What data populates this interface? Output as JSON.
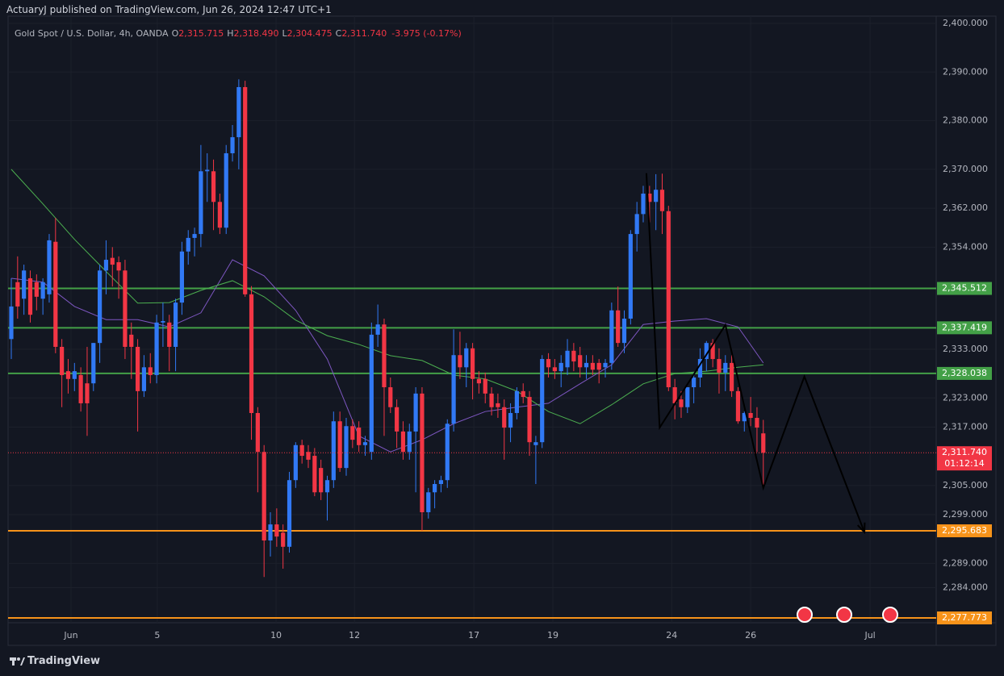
{
  "header": {
    "publisher": "ActuaryJ published on TradingView.com, Jun 26, 2024 12:47 UTC+1",
    "footer": "TradingView"
  },
  "chart_data": {
    "type": "candlestick",
    "symbol": "Gold Spot / U.S. Dollar, 4h, OANDA",
    "legend_values": [
      {
        "key": "O",
        "value": "2,315.715"
      },
      {
        "key": "H",
        "value": "2,318.490"
      },
      {
        "key": "L",
        "value": "2,304.475"
      },
      {
        "key": "C",
        "value": "2,311.740"
      }
    ],
    "change": "-3.975 (-0.17%)",
    "up_color": "#3179f5",
    "down_color": "#f23645",
    "xlim": [
      -0.51,
      146.36
    ],
    "ylim": [
      2276.78,
      2401.49
    ],
    "grid": true,
    "xticks": [
      {
        "value": 9.45,
        "label": "Jun"
      },
      {
        "value": 23.1,
        "label": "5"
      },
      {
        "value": 41.9,
        "label": "10"
      },
      {
        "value": 54.3,
        "label": "12"
      },
      {
        "value": 73.2,
        "label": "17"
      },
      {
        "value": 85.7,
        "label": "19"
      },
      {
        "value": 104.5,
        "label": "24"
      },
      {
        "value": 117.0,
        "label": "26"
      },
      {
        "value": 135.9,
        "label": "Jul"
      }
    ],
    "yticks": [
      {
        "value": 2400,
        "label": "2,400.000"
      },
      {
        "value": 2390,
        "label": "2,390.000"
      },
      {
        "value": 2380,
        "label": "2,380.000"
      },
      {
        "value": 2370,
        "label": "2,370.000"
      },
      {
        "value": 2362,
        "label": "2,362.000"
      },
      {
        "value": 2354,
        "label": "2,354.000"
      },
      {
        "value": 2333,
        "label": "2,333.000"
      },
      {
        "value": 2323,
        "label": "2,323.000"
      },
      {
        "value": 2317,
        "label": "2,317.000"
      },
      {
        "value": 2305,
        "label": "2,305.000"
      },
      {
        "value": 2299,
        "label": "2,299.000"
      },
      {
        "value": 2289,
        "label": "2,289.000"
      },
      {
        "value": 2284,
        "label": "2,284.000"
      }
    ],
    "ohlc": [
      [
        2335.1,
        2347.6,
        2331.0,
        2341.8
      ],
      [
        2346.8,
        2352.1,
        2339.3,
        2341.8
      ],
      [
        2343.4,
        2350.4,
        2340.1,
        2349.2
      ],
      [
        2347.6,
        2349.2,
        2338.5,
        2340.1
      ],
      [
        2346.8,
        2348.4,
        2341.0,
        2343.8
      ],
      [
        2343.4,
        2347.6,
        2340.1,
        2346.8
      ],
      [
        2344.3,
        2356.7,
        2342.6,
        2355.4
      ],
      [
        2355.1,
        2360.0,
        2332.2,
        2333.5
      ],
      [
        2333.5,
        2335.1,
        2321.1,
        2327.7
      ],
      [
        2328.5,
        2331.0,
        2323.9,
        2326.9
      ],
      [
        2326.9,
        2330.2,
        2324.4,
        2328.5
      ],
      [
        2327.7,
        2329.3,
        2320.2,
        2321.9
      ],
      [
        2326.0,
        2333.5,
        2315.2,
        2321.9
      ],
      [
        2326.0,
        2334.3,
        2324.4,
        2334.3
      ],
      [
        2334.3,
        2350.4,
        2330.2,
        2349.2
      ],
      [
        2349.2,
        2355.4,
        2344.3,
        2351.4
      ],
      [
        2351.8,
        2354.0,
        2345.9,
        2350.4
      ],
      [
        2350.9,
        2352.1,
        2343.4,
        2349.2
      ],
      [
        2349.2,
        2351.4,
        2331.0,
        2333.5
      ],
      [
        2336.0,
        2338.5,
        2326.9,
        2333.5
      ],
      [
        2333.5,
        2335.1,
        2316.1,
        2324.4
      ],
      [
        2324.4,
        2331.8,
        2323.2,
        2329.3
      ],
      [
        2329.3,
        2332.2,
        2326.0,
        2327.7
      ],
      [
        2327.7,
        2340.1,
        2326.0,
        2338.5
      ],
      [
        2338.5,
        2342.6,
        2333.5,
        2338.8
      ],
      [
        2338.5,
        2340.1,
        2328.5,
        2333.5
      ],
      [
        2333.5,
        2343.4,
        2328.5,
        2342.6
      ],
      [
        2342.6,
        2355.1,
        2340.1,
        2353.1
      ],
      [
        2353.1,
        2357.5,
        2350.4,
        2355.9
      ],
      [
        2355.9,
        2358.0,
        2352.1,
        2356.7
      ],
      [
        2356.7,
        2375.0,
        2354.0,
        2369.6
      ],
      [
        2369.6,
        2373.3,
        2363.3,
        2369.9
      ],
      [
        2369.6,
        2372.0,
        2357.5,
        2363.3
      ],
      [
        2363.3,
        2365.0,
        2356.7,
        2358.0
      ],
      [
        2358.0,
        2375.0,
        2356.7,
        2373.3
      ],
      [
        2373.3,
        2379.1,
        2371.6,
        2376.6
      ],
      [
        2376.6,
        2388.5,
        2370.0,
        2386.9
      ],
      [
        2386.9,
        2388.2,
        2343.8,
        2344.3
      ],
      [
        2344.3,
        2346.0,
        2314.4,
        2319.9
      ],
      [
        2319.9,
        2321.1,
        2303.6,
        2311.9
      ],
      [
        2311.9,
        2313.3,
        2286.2,
        2293.7
      ],
      [
        2293.7,
        2299.5,
        2290.4,
        2297.0
      ],
      [
        2297.0,
        2300.3,
        2292.4,
        2294.5
      ],
      [
        2295.3,
        2297.0,
        2287.9,
        2292.4
      ],
      [
        2292.4,
        2307.8,
        2291.2,
        2306.1
      ],
      [
        2306.1,
        2313.9,
        2304.5,
        2313.3
      ],
      [
        2313.3,
        2314.4,
        2309.5,
        2311.1
      ],
      [
        2311.9,
        2313.3,
        2308.6,
        2310.3
      ],
      [
        2311.1,
        2312.7,
        2302.8,
        2303.6
      ],
      [
        2308.6,
        2310.3,
        2302.0,
        2303.6
      ],
      [
        2303.6,
        2307.0,
        2297.8,
        2306.1
      ],
      [
        2306.1,
        2320.2,
        2304.5,
        2318.2
      ],
      [
        2318.2,
        2320.2,
        2307.8,
        2308.6
      ],
      [
        2308.6,
        2318.9,
        2307.0,
        2317.2
      ],
      [
        2317.2,
        2318.6,
        2312.7,
        2314.4
      ],
      [
        2316.9,
        2318.2,
        2311.9,
        2313.3
      ],
      [
        2313.3,
        2315.2,
        2311.1,
        2313.9
      ],
      [
        2311.9,
        2338.5,
        2310.3,
        2336.0
      ],
      [
        2336.0,
        2342.2,
        2333.5,
        2338.1
      ],
      [
        2338.1,
        2339.3,
        2315.2,
        2325.2
      ],
      [
        2325.2,
        2327.2,
        2319.9,
        2321.1
      ],
      [
        2321.1,
        2322.7,
        2312.7,
        2316.1
      ],
      [
        2316.1,
        2318.2,
        2310.3,
        2311.9
      ],
      [
        2311.9,
        2317.7,
        2310.3,
        2316.1
      ],
      [
        2316.1,
        2325.2,
        2303.6,
        2323.9
      ],
      [
        2323.9,
        2325.2,
        2295.7,
        2299.5
      ],
      [
        2299.5,
        2304.5,
        2298.2,
        2303.6
      ],
      [
        2303.6,
        2306.1,
        2300.3,
        2305.3
      ],
      [
        2305.3,
        2307.0,
        2303.6,
        2306.1
      ],
      [
        2306.1,
        2318.6,
        2304.5,
        2317.7
      ],
      [
        2317.7,
        2337.1,
        2316.1,
        2331.8
      ],
      [
        2331.8,
        2336.6,
        2326.9,
        2329.3
      ],
      [
        2329.3,
        2334.3,
        2325.2,
        2333.2
      ],
      [
        2333.2,
        2334.3,
        2322.7,
        2326.9
      ],
      [
        2326.9,
        2328.5,
        2323.9,
        2326.0
      ],
      [
        2326.9,
        2328.2,
        2321.9,
        2323.9
      ],
      [
        2323.9,
        2325.2,
        2319.4,
        2321.1
      ],
      [
        2321.9,
        2323.9,
        2318.9,
        2321.1
      ],
      [
        2321.1,
        2322.7,
        2310.3,
        2316.9
      ],
      [
        2316.9,
        2321.9,
        2313.9,
        2319.9
      ],
      [
        2319.9,
        2325.2,
        2318.6,
        2324.4
      ],
      [
        2324.4,
        2326.0,
        2321.9,
        2323.2
      ],
      [
        2323.2,
        2324.4,
        2311.1,
        2313.9
      ],
      [
        2313.3,
        2315.2,
        2305.3,
        2313.9
      ],
      [
        2313.9,
        2331.8,
        2312.7,
        2331.0
      ],
      [
        2331.0,
        2332.2,
        2327.2,
        2329.3
      ],
      [
        2329.3,
        2331.0,
        2326.9,
        2328.5
      ],
      [
        2328.5,
        2331.8,
        2325.2,
        2330.2
      ],
      [
        2329.3,
        2335.1,
        2327.7,
        2332.7
      ],
      [
        2332.7,
        2334.3,
        2328.5,
        2330.5
      ],
      [
        2331.8,
        2333.5,
        2327.2,
        2329.3
      ],
      [
        2329.3,
        2331.8,
        2326.9,
        2330.2
      ],
      [
        2330.2,
        2331.8,
        2327.7,
        2328.8
      ],
      [
        2330.2,
        2331.0,
        2326.0,
        2328.8
      ],
      [
        2329.3,
        2331.0,
        2327.2,
        2330.2
      ],
      [
        2330.2,
        2342.6,
        2328.8,
        2341.0
      ],
      [
        2341.0,
        2345.9,
        2333.5,
        2334.3
      ],
      [
        2334.3,
        2341.0,
        2332.2,
        2339.3
      ],
      [
        2339.3,
        2357.5,
        2338.1,
        2356.7
      ],
      [
        2356.7,
        2363.3,
        2353.1,
        2360.8
      ],
      [
        2360.8,
        2366.6,
        2359.1,
        2365.0
      ],
      [
        2365.0,
        2366.6,
        2359.1,
        2363.3
      ],
      [
        2363.3,
        2369.0,
        2357.5,
        2365.8
      ],
      [
        2365.8,
        2369.1,
        2356.7,
        2361.4
      ],
      [
        2361.4,
        2362.5,
        2324.4,
        2325.2
      ],
      [
        2325.2,
        2326.9,
        2318.6,
        2321.9
      ],
      [
        2322.7,
        2324.4,
        2318.9,
        2321.1
      ],
      [
        2321.1,
        2325.2,
        2319.9,
        2325.2
      ],
      [
        2325.2,
        2328.2,
        2321.9,
        2327.2
      ],
      [
        2327.2,
        2333.2,
        2325.2,
        2331.0
      ],
      [
        2331.0,
        2334.7,
        2328.5,
        2334.3
      ],
      [
        2334.3,
        2335.1,
        2329.3,
        2331.0
      ],
      [
        2331.0,
        2333.2,
        2323.9,
        2328.2
      ],
      [
        2328.2,
        2331.8,
        2324.4,
        2330.2
      ],
      [
        2330.2,
        2331.8,
        2323.2,
        2324.4
      ],
      [
        2324.4,
        2325.2,
        2317.7,
        2318.2
      ],
      [
        2318.2,
        2320.2,
        2316.1,
        2319.9
      ],
      [
        2319.9,
        2323.2,
        2317.2,
        2318.9
      ],
      [
        2318.9,
        2321.1,
        2311.9,
        2316.9
      ],
      [
        2315.715,
        2318.49,
        2304.475,
        2311.74
      ]
    ],
    "series": [
      {
        "name": "MA fast",
        "color": "#7e57c2",
        "x": [
          0,
          5,
          10,
          15,
          20,
          25,
          30,
          35,
          40,
          45,
          50,
          55,
          60,
          65,
          70,
          75,
          80,
          85,
          90,
          95,
          100,
          105,
          110,
          115,
          119
        ],
        "values": [
          2347.6,
          2346.8,
          2341.8,
          2339.1,
          2339.1,
          2337.6,
          2340.5,
          2351.4,
          2348.1,
          2341.0,
          2331.0,
          2315.2,
          2311.9,
          2314.4,
          2317.7,
          2320.2,
          2321.1,
          2321.9,
          2325.9,
          2329.8,
          2338.1,
          2338.8,
          2339.3,
          2337.6,
          2330.2
        ]
      },
      {
        "name": "MA slow",
        "color": "#4caf50",
        "x": [
          0,
          5,
          10,
          15,
          20,
          25,
          30,
          35,
          40,
          45,
          50,
          55,
          60,
          65,
          70,
          75,
          80,
          85,
          90,
          95,
          100,
          105,
          110,
          115,
          119
        ],
        "values": [
          2370.0,
          2362.9,
          2355.6,
          2349.0,
          2342.5,
          2342.6,
          2345.1,
          2347.1,
          2343.8,
          2339.0,
          2335.8,
          2334.0,
          2331.7,
          2330.7,
          2327.7,
          2326.9,
          2324.4,
          2320.2,
          2317.7,
          2321.6,
          2325.9,
          2328.0,
          2328.5,
          2329.3,
          2329.8
        ]
      }
    ],
    "levels": [
      {
        "value": 2345.512,
        "label": "2,345.512",
        "color": "#43a047"
      },
      {
        "value": 2337.419,
        "label": "2,337.419",
        "color": "#43a047"
      },
      {
        "value": 2328.038,
        "label": "2,328.038",
        "color": "#43a047"
      },
      {
        "value": 2295.683,
        "label": "2,295.683",
        "color": "#f7931a"
      },
      {
        "value": 2277.773,
        "label": "2,277.773",
        "color": "#f7931a"
      }
    ],
    "last_price": {
      "value": 2311.74,
      "label": "2,311.740",
      "countdown": "01:12:14",
      "color": "#f23645"
    },
    "drawing": {
      "x": [
        100.5,
        102.6,
        113.0,
        119.0,
        125.5,
        135.0
      ],
      "y": [
        2369.2,
        2316.9,
        2338.0,
        2304.5,
        2327.4,
        2295.4
      ],
      "color": "#000000"
    }
  }
}
